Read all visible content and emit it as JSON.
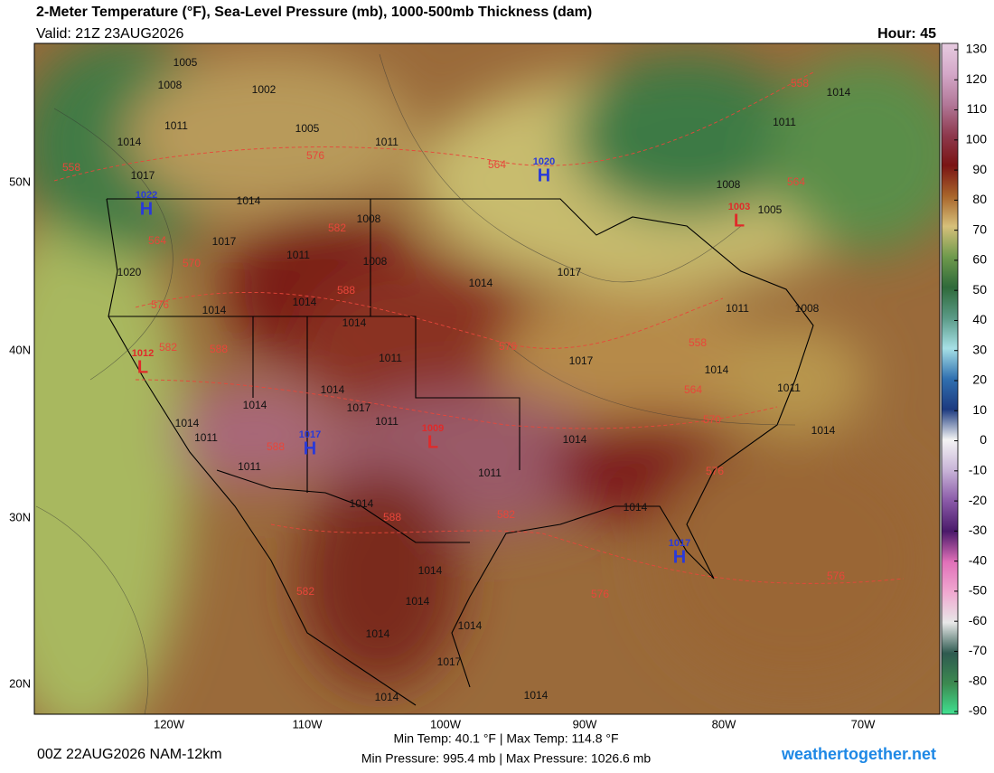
{
  "header": {
    "title": "2-Meter Temperature (°F), Sea-Level Pressure (mb), 1000-500mb Thickness (dam)",
    "valid": "Valid: 21Z 23AUG2026",
    "hour": "Hour: 45"
  },
  "map": {
    "lon_labels": [
      "120W",
      "110W",
      "100W",
      "90W",
      "80W",
      "70W"
    ],
    "lat_labels": [
      "50N",
      "40N",
      "30N",
      "20N"
    ],
    "pressure_labels": [
      "1005",
      "1008",
      "1002",
      "1005",
      "1011",
      "1014",
      "1011",
      "1017",
      "1014",
      "1008",
      "1017",
      "1011",
      "1008",
      "1020",
      "1017",
      "1014",
      "1014",
      "1014",
      "1014",
      "1011",
      "1017",
      "1014",
      "1011",
      "1008",
      "1014",
      "1011",
      "1017",
      "1011",
      "1014",
      "1011",
      "1011",
      "1014",
      "1014",
      "1014",
      "1014",
      "1014",
      "1014",
      "1017",
      "1014",
      "1014",
      "1014",
      "1014",
      "1014",
      "1011",
      "1005",
      "1008",
      "1014",
      "1011"
    ],
    "thickness_labels": [
      "558",
      "576",
      "564",
      "582",
      "564",
      "570",
      "576",
      "588",
      "582",
      "588",
      "576",
      "558",
      "564",
      "570",
      "576",
      "588",
      "588",
      "582",
      "582",
      "576",
      "576",
      "558",
      "564"
    ],
    "highs": [
      {
        "symbol": "H",
        "pressure": "1022"
      },
      {
        "symbol": "H",
        "pressure": "1020"
      },
      {
        "symbol": "H",
        "pressure": "1017"
      },
      {
        "symbol": "H",
        "pressure": "1017"
      }
    ],
    "lows": [
      {
        "symbol": "L",
        "pressure": "1003"
      },
      {
        "symbol": "L",
        "pressure": "1012"
      },
      {
        "symbol": "L",
        "pressure": "1009"
      }
    ]
  },
  "colorbar": {
    "ticks": [
      130,
      120,
      110,
      100,
      90,
      80,
      70,
      60,
      50,
      40,
      30,
      20,
      10,
      0,
      -10,
      -20,
      -30,
      -40,
      -50,
      -60,
      -70,
      -80,
      -90
    ],
    "colors": [
      "#e6cbe0",
      "#d4a8c8",
      "#b27898",
      "#8e3a4e",
      "#7a1414",
      "#a8642a",
      "#d6c07a",
      "#6f9a4c",
      "#2f6a3a",
      "#5a9a86",
      "#a6e0e6",
      "#3070b0",
      "#1c3a80",
      "#f4f4f4",
      "#c8b4d8",
      "#8a5aa8",
      "#4a1a6a",
      "#e070b8",
      "#f0a8d0",
      "#e8e8e8",
      "#2e5a50",
      "#3c8a50",
      "#40e090"
    ]
  },
  "footer": {
    "run": "00Z 22AUG2026 NAM-12km",
    "min_max_temp": "Min Temp:  40.1 °F | Max Temp: 114.8 °F",
    "min_max_pressure": "Min Pressure: 995.4 mb | Max Pressure: 1026.6 mb",
    "site": "weathertogether.net"
  }
}
